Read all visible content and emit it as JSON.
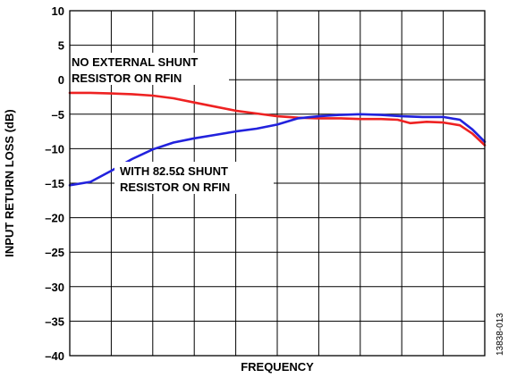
{
  "chart_data": {
    "type": "line",
    "title": "",
    "xlabel": "FREQUENCY",
    "ylabel": "INPUT RETURN LOSS (dB)",
    "ylim": [
      -40,
      10
    ],
    "yticks": [
      10,
      5,
      0,
      -5,
      -10,
      -15,
      -20,
      -25,
      -30,
      -35,
      -40
    ],
    "ytick_labels": [
      "10",
      "5",
      "0",
      "–5",
      "–10",
      "–15",
      "–20",
      "–25",
      "–30",
      "–35",
      "–40"
    ],
    "xlim": [
      0,
      10
    ],
    "x_gridlines": 10,
    "grid": true,
    "series": [
      {
        "color": "#ee2222",
        "x": [
          0,
          0.5,
          1.0,
          1.5,
          2.0,
          2.5,
          3.0,
          3.5,
          4.0,
          4.5,
          5.0,
          5.5,
          6.0,
          6.5,
          7.0,
          7.5,
          7.9,
          8.2,
          8.6,
          9.0,
          9.4,
          9.7,
          10.0
        ],
        "y": [
          -1.9,
          -1.9,
          -2.0,
          -2.1,
          -2.3,
          -2.7,
          -3.3,
          -3.9,
          -4.5,
          -4.9,
          -5.3,
          -5.5,
          -5.6,
          -5.6,
          -5.7,
          -5.7,
          -5.8,
          -6.3,
          -6.1,
          -6.2,
          -6.6,
          -7.8,
          -9.5
        ]
      },
      {
        "color": "#2222dd",
        "x": [
          0,
          0.5,
          1.0,
          1.5,
          2.0,
          2.5,
          3.0,
          3.5,
          4.0,
          4.5,
          5.0,
          5.5,
          6.0,
          6.5,
          7.0,
          7.5,
          8.0,
          8.5,
          9.0,
          9.4,
          9.7,
          10.0
        ],
        "y": [
          -15.3,
          -14.8,
          -13.2,
          -11.5,
          -10.1,
          -9.1,
          -8.5,
          -8.0,
          -7.5,
          -7.1,
          -6.5,
          -5.6,
          -5.3,
          -5.1,
          -5.0,
          -5.1,
          -5.3,
          -5.4,
          -5.4,
          -5.8,
          -7.2,
          -9.0
        ]
      }
    ],
    "annotations": [
      {
        "lines": [
          "NO EXTERNAL SHUNT",
          "RESISTOR ON RFIN"
        ]
      },
      {
        "lines": [
          "WITH 82.5Ω SHUNT",
          "RESISTOR ON RFIN"
        ]
      }
    ],
    "figure_id": "13838-013"
  }
}
